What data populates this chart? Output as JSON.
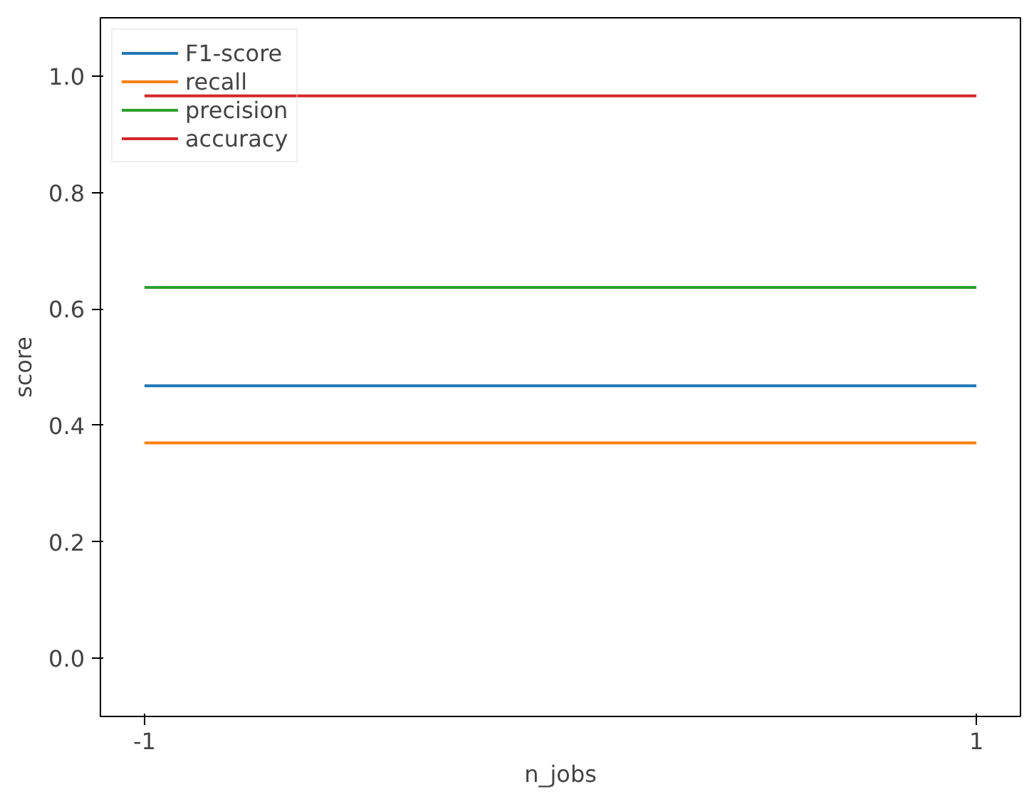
{
  "chart_data": {
    "type": "line",
    "xlabel": "n_jobs",
    "ylabel": "score",
    "categories": [
      "-1",
      "1"
    ],
    "series": [
      {
        "name": "F1-score",
        "color": "#1f77b4",
        "values": [
          0.468,
          0.468
        ]
      },
      {
        "name": "recall",
        "color": "#ff7f0e",
        "values": [
          0.37,
          0.37
        ]
      },
      {
        "name": "precision",
        "color": "#2ca02c",
        "values": [
          0.637,
          0.637
        ]
      },
      {
        "name": "accuracy",
        "color": "#d62728",
        "values": [
          0.966,
          0.966
        ]
      }
    ],
    "ylim": [
      -0.1,
      1.1
    ],
    "yticks": [
      {
        "value": 0.0,
        "label": "0.0"
      },
      {
        "value": 0.2,
        "label": "0.2"
      },
      {
        "value": 0.4,
        "label": "0.4"
      },
      {
        "value": 0.6,
        "label": "0.6"
      },
      {
        "value": 0.8,
        "label": "0.8"
      },
      {
        "value": 1.0,
        "label": "1.0"
      }
    ],
    "grid": false,
    "legend": "top left",
    "line_style": "solid"
  }
}
